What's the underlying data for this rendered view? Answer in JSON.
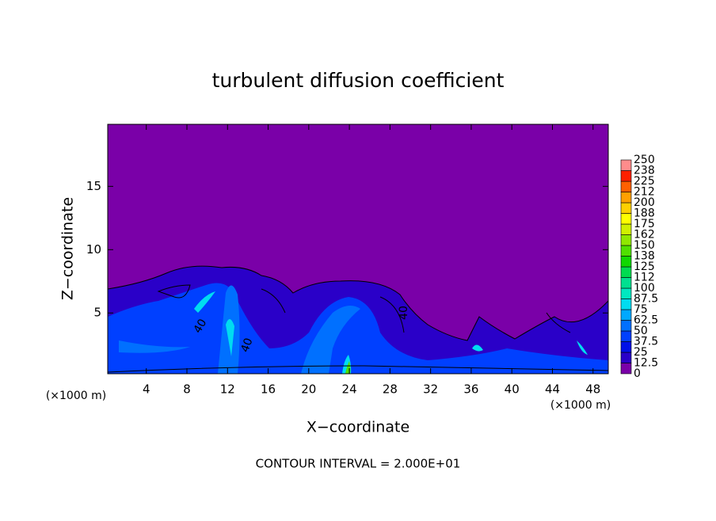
{
  "chart_data": {
    "type": "contour",
    "title": "turbulent diffusion coefficient",
    "x_label": "X−coordinate",
    "y_label": "Z−coordinate",
    "x_unit": "(×1000 m)",
    "y_unit": "(×1000 m)",
    "footer": "CONTOUR INTERVAL = 2.000E+01",
    "contour_labels": [
      "40",
      "40",
      "40"
    ],
    "xlim": [
      0.2,
      49.5
    ],
    "ylim": [
      0.2,
      19.9
    ],
    "xticks": [
      4,
      8,
      12,
      16,
      20,
      24,
      28,
      32,
      36,
      40,
      44,
      48
    ],
    "yticks": [
      5,
      10,
      15
    ],
    "colorbar": {
      "levels": [
        0,
        12.5,
        25,
        37.5,
        50,
        62.5,
        75,
        87.5,
        100,
        {
          "value": 112.5,
          "label": "112"
        },
        125,
        {
          "value": 137.5,
          "label": "138"
        },
        150,
        {
          "value": 162.5,
          "label": "162"
        },
        175,
        {
          "value": 187.5,
          "label": "188"
        },
        200,
        {
          "value": 212.5,
          "label": "212"
        },
        225,
        {
          "value": 237.5,
          "label": "238"
        },
        250
      ],
      "colors": [
        "#7a00a8",
        "#2a00c8",
        "#0010e8",
        "#0040ff",
        "#0070ff",
        "#00a8ff",
        "#00dcf0",
        "#00e8c0",
        "#00e090",
        "#00dc50",
        "#10d800",
        "#50e000",
        "#90e800",
        "#d0f000",
        "#ffff00",
        "#ffd000",
        "#ffa000",
        "#ff6000",
        "#ff2000",
        "#ff8c8c"
      ]
    }
  }
}
